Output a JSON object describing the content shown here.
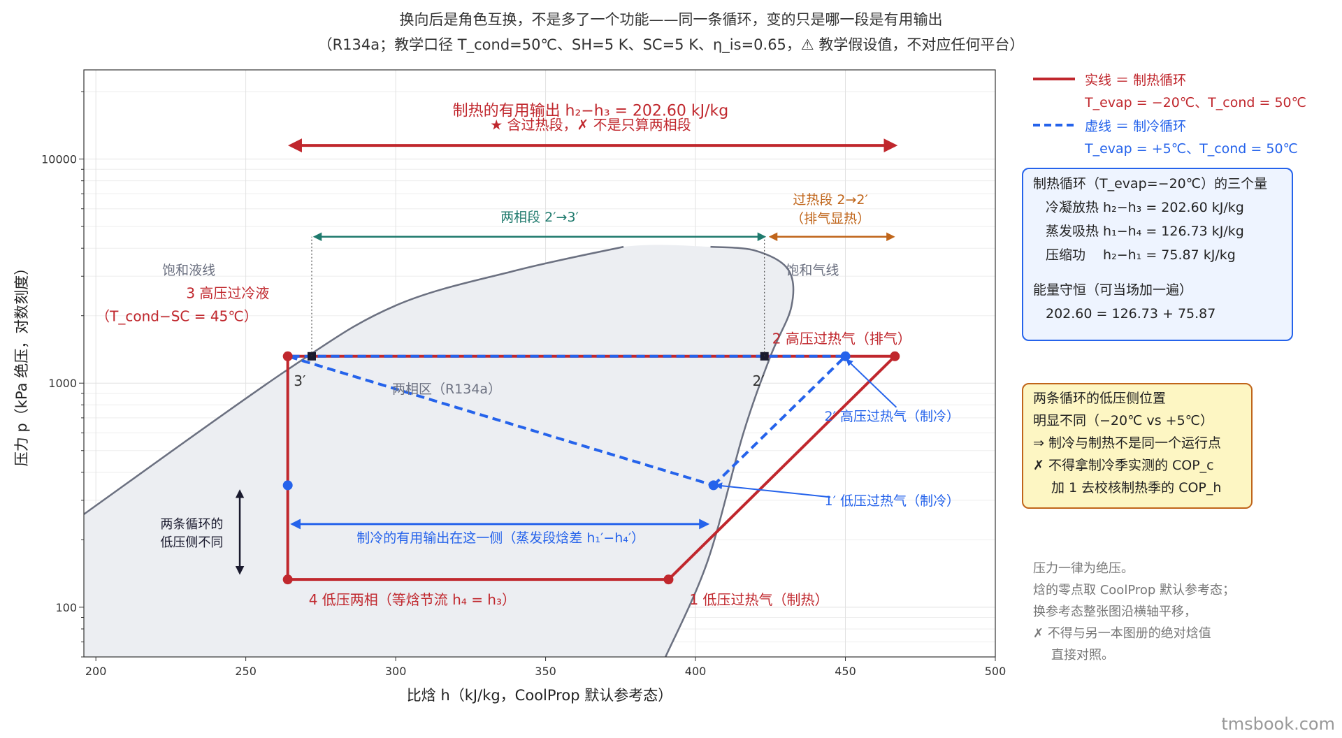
{
  "title": {
    "line1": "换向后是角色互换，不是多了一个功能——同一条循环，变的只是哪一段是有用输出",
    "line2": "（R134a；教学口径 T_cond=50℃、SH=5 K、SC=5 K、η_is=0.65，⚠ 教学假设值，不对应任何平台）"
  },
  "legend": {
    "solid_label": "实线 ＝ 制热循环",
    "solid_detail": "T_evap = −20℃、T_cond = 50℃",
    "dashed_label": "虚线 ＝ 制冷循环",
    "dashed_detail": "T_evap = +5℃、T_cond = 50℃"
  },
  "box_quantities": {
    "title": "制热循环（T_evap=−20℃）的三个量",
    "line1": "冷凝放热 h₂−h₃ = 202.60 kJ/kg",
    "line2": "蒸发吸热 h₁−h₄ = 126.73 kJ/kg",
    "line3": "压缩功　 h₂−h₁ = 75.87 kJ/kg",
    "line4": "能量守恒（可当场加一遍）",
    "line5": "202.60 = 126.73 + 75.87"
  },
  "box_lowside": {
    "line1": "两条循环的低压侧位置",
    "line2": "明显不同（−20℃ vs +5℃）",
    "line3": "⇒ 制冷与制热不是同一个运行点",
    "line4": "✗ 不得拿制冷季实测的 COP_c",
    "line5": "加 1 去校核制热季的 COP_h"
  },
  "notes": {
    "line1": "压力一律为绝压。",
    "line2": "焓的零点取 CoolProp 默认参考态；",
    "line3": "换参考态整张图沿横轴平移，",
    "line4": "✗ 不得与另一本图册的绝对焓值",
    "line5": "直接对照。"
  },
  "watermark": "tmsbook.com",
  "colors": {
    "heating": "#c0272d",
    "cooling": "#2563eb",
    "twophase_arrow": "#1f7a6d",
    "superheat_arrow": "#c0651a",
    "dome": "#6b7080",
    "dome_fill": "#eceef2",
    "note_arrow": "#1a1a2e"
  },
  "chart_data": {
    "type": "line",
    "xlabel": "比焓 h（kJ/kg，CoolProp 默认参考态）",
    "ylabel": "压力 p（kPa 绝压，对数刻度）",
    "xlim": [
      196,
      500
    ],
    "ylim": [
      60,
      25000
    ],
    "yscale": "log",
    "grid": true,
    "xticks": [
      200,
      250,
      300,
      350,
      400,
      450,
      500
    ],
    "yticks": [
      100,
      1000,
      10000
    ],
    "series": [
      {
        "name": "制热循环",
        "style": "solid",
        "x": [
          391,
          466.5,
          264,
          264,
          391
        ],
        "y": [
          133,
          1318,
          1318,
          133,
          133
        ]
      },
      {
        "name": "制冷循环",
        "style": "dashed",
        "x": [
          406,
          450,
          264,
          406
        ],
        "y": [
          350,
          1318,
          1318,
          350
        ]
      }
    ],
    "saturation_dome": {
      "liquid_x": [
        196,
        264,
        300,
        340,
        376
      ],
      "liquid_y": [
        260,
        1150,
        2220,
        3180,
        4060
      ],
      "vapor_x": [
        390,
        404,
        416,
        425,
        432,
        431,
        420,
        405
      ],
      "vapor_y": [
        60,
        160,
        600,
        1318,
        2200,
        3200,
        3900,
        4060
      ]
    },
    "points": {
      "p1": {
        "label": "1 低压过热气（制热）",
        "h": 391,
        "p": 133
      },
      "p2": {
        "label": "2 高压过热气（排气）",
        "h": 466.5,
        "p": 1318
      },
      "p3": {
        "label": "3 高压过冷液",
        "sublabel": "（T_cond−SC = 45℃）",
        "h": 264,
        "p": 1318
      },
      "p4": {
        "label": "4 低压两相（等焓节流 h₄ = h₃）",
        "h": 264,
        "p": 133
      },
      "p2p": {
        "label": "2′",
        "h": 423,
        "p": 1318
      },
      "p3p": {
        "label": "3′",
        "h": 272,
        "p": 1318
      },
      "c1": {
        "label": "1′ 低压过热气（制冷）",
        "h": 406,
        "p": 350
      },
      "c2": {
        "label": "2′ 高压过热气（制冷）",
        "h": 450,
        "p": 1318
      },
      "c4": {
        "h": 264,
        "p": 350
      }
    },
    "annotations": {
      "heating_output": "制热的有用输出 h₂−h₃ = 202.60 kJ/kg",
      "heating_output_sub": "★ 含过热段，✗ 不是只算两相段",
      "two_phase": "两相段 2′→3′",
      "superheat": "过热段 2→2′",
      "superheat_sub": "（排气显热）",
      "sat_liquid": "饱和液线",
      "sat_vapor": "饱和气线",
      "two_phase_region": "两相区（R134a）",
      "cooling_output": "制冷的有用输出在这一侧（蒸发段焓差 h₁′−h₄′）",
      "low_side_diff_1": "两条循环的",
      "low_side_diff_2": "低压侧不同"
    }
  }
}
